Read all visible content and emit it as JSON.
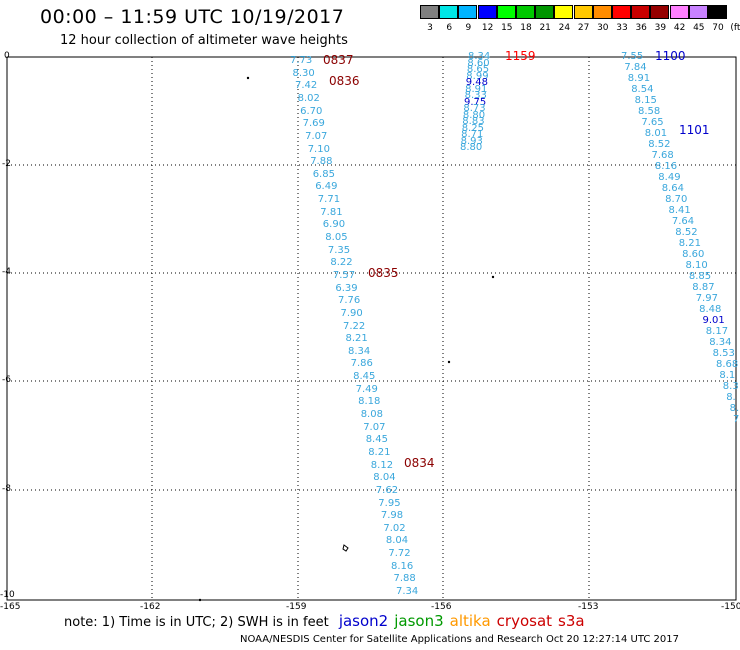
{
  "header": {
    "title": "00:00 – 11:59 UTC 10/19/2017",
    "subtitle": "12 hour collection of altimeter wave heights"
  },
  "colorbar": {
    "labels": [
      "3",
      "6",
      "9",
      "12",
      "15",
      "18",
      "21",
      "24",
      "27",
      "30",
      "33",
      "36",
      "39",
      "42",
      "45",
      "70",
      "(ft)"
    ],
    "colors": [
      "#808080",
      "#00e6e6",
      "#00b4ff",
      "#0000ff",
      "#00ff00",
      "#00c800",
      "#009600",
      "#ffff00",
      "#ffc800",
      "#ff8c00",
      "#ff0000",
      "#c80000",
      "#960000",
      "#ff80ff",
      "#c882ff",
      "#000000"
    ]
  },
  "axes": {
    "x_ticks": [
      "-165",
      "-162",
      "-159",
      "-156",
      "-153",
      "-150"
    ],
    "y_ticks": [
      "0",
      "-2",
      "-4",
      "-6",
      "-8",
      "-10"
    ]
  },
  "track_labels": [
    {
      "text": "0837",
      "color": "#8b0000"
    },
    {
      "text": "0836",
      "color": "#8b0000"
    },
    {
      "text": "0835",
      "color": "#8b0000"
    },
    {
      "text": "0834",
      "color": "#8b0000"
    },
    {
      "text": "1159",
      "color": "#ff0000"
    },
    {
      "text": "1100",
      "color": "#0000cc"
    },
    {
      "text": "1101",
      "color": "#0000cc"
    }
  ],
  "track_a": [
    "7.73",
    "8.30",
    "7.42",
    "8.02",
    "6.70",
    "7.69",
    "7.07",
    "7.10",
    "7.88",
    "6.85",
    "6.49",
    "7.71",
    "7.81",
    "6.90",
    "8.05",
    "7.35",
    "8.22",
    "7.57",
    "6.39",
    "7.76",
    "7.90",
    "7.22",
    "8.21",
    "8.34",
    "7.86",
    "8.45",
    "7.49",
    "8.18",
    "8.08",
    "7.07",
    "8.45",
    "8.21",
    "8.12",
    "8.04",
    "7.62",
    "7.95",
    "7.98",
    "7.02",
    "8.04",
    "7.72",
    "8.16",
    "7.88",
    "7.34"
  ],
  "track_b": [
    "8.34",
    "8.60",
    "8.65",
    "8.99",
    "9.48",
    "8.91",
    "8.33",
    "9.75",
    "8.73",
    "8.80",
    "8.83",
    "8.25",
    "8.71",
    "8.93",
    "8.80"
  ],
  "track_c": [
    "7.55",
    "7.84",
    "8.91",
    "8.54",
    "8.15",
    "8.58",
    "7.65",
    "8.01",
    "8.52",
    "7.68",
    "8.16",
    "8.49",
    "8.64",
    "8.70",
    "8.41",
    "7.64",
    "8.52",
    "8.21",
    "8.60",
    "8.10",
    "8.85",
    "8.87",
    "7.97",
    "8.48",
    "9.01",
    "8.17",
    "8.34",
    "8.53",
    "8.68",
    "8.1",
    "8.3",
    "8.",
    "8.",
    "7."
  ],
  "notes": {
    "note": "note:  1) Time is in UTC;  2) SWH is in feet",
    "sats": [
      {
        "name": "jason2",
        "color": "#0000cc"
      },
      {
        "name": "jason3",
        "color": "#009900"
      },
      {
        "name": "altika",
        "color": "#ff9900"
      },
      {
        "name": "cryosat",
        "color": "#cc0000"
      },
      {
        "name": "s3a",
        "color": "#cc0000"
      }
    ]
  },
  "footer": "NOAA/NESDIS Center for Satellite Applications and Research    Oct 20 12:27:14 UTC 2017"
}
